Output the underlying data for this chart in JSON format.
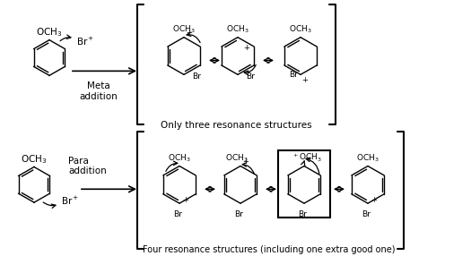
{
  "bg_color": "#ffffff",
  "line_color": "#000000",
  "fig_width": 5.25,
  "fig_height": 2.86,
  "dpi": 100,
  "top_label": "Only three resonance structures",
  "bottom_label": "Four resonance structures (including one extra good one)",
  "meta_label": "Meta\naddition",
  "para_label": "Para\naddition",
  "och3": "OCH₃",
  "br": "Br",
  "br_plus": "Br⁺"
}
